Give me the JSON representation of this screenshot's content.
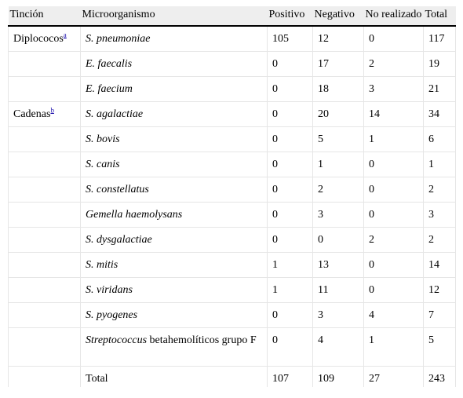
{
  "table": {
    "headers": {
      "tincion": "Tinción",
      "microorganismo": "Microorganismo",
      "positivo": "Positivo",
      "negativo": "Negativo",
      "no_realizado": "No realizado",
      "total": "Total"
    },
    "groups": {
      "diplococos": {
        "label": "Diplococos",
        "footnote": "a"
      },
      "cadenas": {
        "label": "Cadenas",
        "footnote": "b"
      }
    },
    "rows": [
      {
        "organism": "S. pneumoniae",
        "positivo": "105",
        "negativo": "12",
        "no_realizado": "0",
        "total": "117"
      },
      {
        "organism": "E. faecalis",
        "positivo": "0",
        "negativo": "17",
        "no_realizado": "2",
        "total": "19"
      },
      {
        "organism": "E. faecium",
        "positivo": "0",
        "negativo": "18",
        "no_realizado": "3",
        "total": "21"
      },
      {
        "organism": "S. agalactiae",
        "positivo": "0",
        "negativo": "20",
        "no_realizado": "14",
        "total": "34"
      },
      {
        "organism": "S. bovis",
        "positivo": "0",
        "negativo": "5",
        "no_realizado": "1",
        "total": "6"
      },
      {
        "organism": "S. canis",
        "positivo": "0",
        "negativo": "1",
        "no_realizado": "0",
        "total": "1"
      },
      {
        "organism": "S. constellatus",
        "positivo": "0",
        "negativo": "2",
        "no_realizado": "0",
        "total": "2"
      },
      {
        "organism": "Gemella haemolysans",
        "positivo": "0",
        "negativo": "3",
        "no_realizado": "0",
        "total": "3"
      },
      {
        "organism": "S. dysgalactiae",
        "positivo": "0",
        "negativo": "0",
        "no_realizado": "2",
        "total": "2"
      },
      {
        "organism": "S. mitis",
        "positivo": "1",
        "negativo": "13",
        "no_realizado": "0",
        "total": "14"
      },
      {
        "organism": "S. viridans",
        "positivo": "1",
        "negativo": "11",
        "no_realizado": "0",
        "total": "12"
      },
      {
        "organism": "S. pyogenes",
        "positivo": "0",
        "negativo": "3",
        "no_realizado": "4",
        "total": "7"
      },
      {
        "organism_italic": "Streptococcus",
        "organism_rest": " betahemolíticos grupo F",
        "positivo": "0",
        "negativo": "4",
        "no_realizado": "1",
        "total": "5"
      }
    ],
    "total_row": {
      "label": "Total",
      "positivo": "107",
      "negativo": "109",
      "no_realizado": "27",
      "total": "243"
    }
  },
  "colors": {
    "header_background": "#eeeeee",
    "header_rule": "#000000",
    "cell_border": "#e6e6e6",
    "footnote_link": "#1a0dab"
  }
}
